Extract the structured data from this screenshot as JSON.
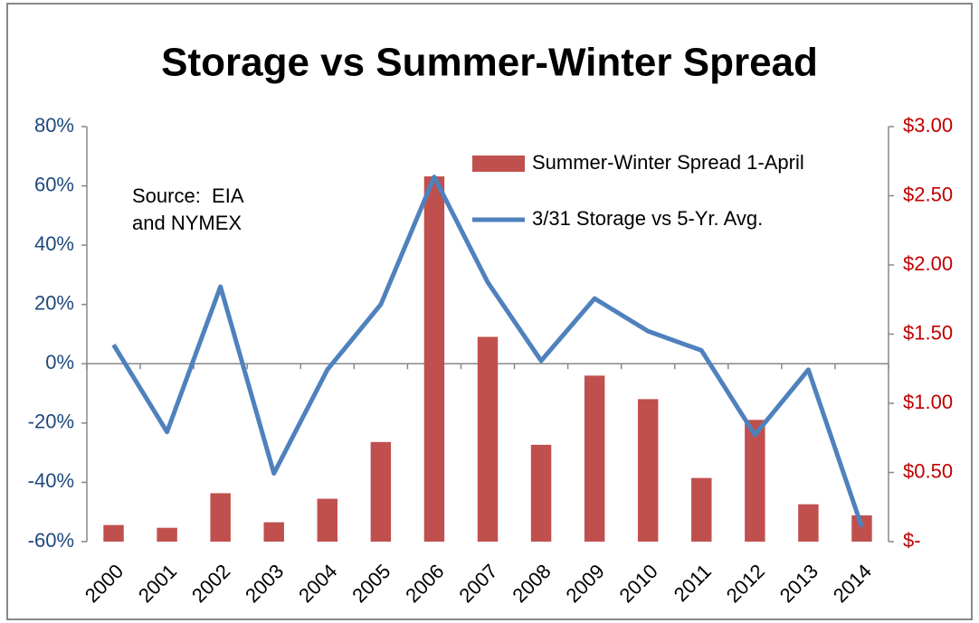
{
  "chart_data": {
    "type": "bar-line",
    "title": "Storage vs Summer-Winter Spread",
    "annotation": "Source:  EIA and NYMEX",
    "categories": [
      "2000",
      "2001",
      "2002",
      "2003",
      "2004",
      "2005",
      "2006",
      "2007",
      "2008",
      "2009",
      "2010",
      "2011",
      "2012",
      "2013",
      "2014"
    ],
    "series": [
      {
        "name": "Summer-Winter Spread 1-April",
        "type": "bar",
        "axis": "y2",
        "color": "#c0504d",
        "values": [
          0.12,
          0.1,
          0.35,
          0.14,
          0.31,
          0.72,
          2.64,
          1.48,
          0.7,
          1.2,
          1.03,
          0.46,
          0.88,
          0.27,
          0.19
        ]
      },
      {
        "name": "3/31 Storage vs 5-Yr. Avg.",
        "type": "line",
        "axis": "y",
        "color": "#4f81bd",
        "values": [
          6.4,
          -23,
          26,
          -37,
          -2,
          20,
          63,
          27.5,
          1,
          22,
          11,
          4.5,
          -24,
          -2,
          -55
        ]
      }
    ],
    "ylim": [
      -60,
      80
    ],
    "yticks": [
      {
        "value": -60,
        "label": "-60%"
      },
      {
        "value": -40,
        "label": "-40%"
      },
      {
        "value": -20,
        "label": "-20%"
      },
      {
        "value": 0,
        "label": "0%"
      },
      {
        "value": 20,
        "label": "20%"
      },
      {
        "value": 40,
        "label": "40%"
      },
      {
        "value": 60,
        "label": "60%"
      },
      {
        "value": 80,
        "label": "80%"
      }
    ],
    "y2lim": [
      0,
      3
    ],
    "y2ticks": [
      {
        "value": 0,
        "label": "$-"
      },
      {
        "value": 0.5,
        "label": "$0.50"
      },
      {
        "value": 1,
        "label": "$1.00"
      },
      {
        "value": 1.5,
        "label": "$1.50"
      },
      {
        "value": 2,
        "label": "$2.00"
      },
      {
        "value": 2.5,
        "label": "$2.50"
      },
      {
        "value": 3,
        "label": "$3.00"
      }
    ],
    "yaxis_color": "#1f497d",
    "y2axis_color": "#c00000",
    "legend": "upper right",
    "grid": false
  }
}
